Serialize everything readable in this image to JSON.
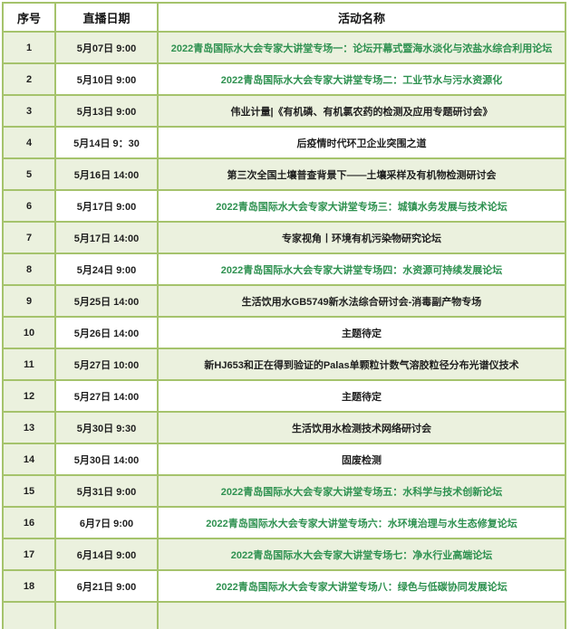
{
  "colors": {
    "border_green": "#a5c36c",
    "cell_green_bg": "#ebf1de",
    "link_green_text": "#2e9150",
    "plain_text": "#1f1f1f"
  },
  "table": {
    "columns": [
      "序号",
      "直播日期",
      "活动名称"
    ],
    "rows": [
      {
        "no": "1",
        "date": "5月07日 9:00",
        "title": "2022青岛国际水大会专家大讲堂专场一：论坛开幕式暨海水淡化与浓盐水综合利用论坛",
        "link": true
      },
      {
        "no": "2",
        "date": "5月10日 9:00",
        "title": "2022青岛国际水大会专家大讲堂专场二：工业节水与污水资源化",
        "link": true
      },
      {
        "no": "3",
        "date": "5月13日 9:00",
        "title": "伟业计量|《有机磷、有机氯农药的检测及应用专题研讨会》",
        "link": false
      },
      {
        "no": "4",
        "date": "5月14日 9：30",
        "title": "后疫情时代环卫企业突围之道",
        "link": false
      },
      {
        "no": "5",
        "date": "5月16日 14:00",
        "title": "第三次全国土壤普查背景下——土壤采样及有机物检测研讨会",
        "link": false
      },
      {
        "no": "6",
        "date": "5月17日 9:00",
        "title": "2022青岛国际水大会专家大讲堂专场三：城镇水务发展与技术论坛",
        "link": true
      },
      {
        "no": "7",
        "date": "5月17日 14:00",
        "title": "专家视角丨环境有机污染物研究论坛",
        "link": false
      },
      {
        "no": "8",
        "date": "5月24日 9:00",
        "title": "2022青岛国际水大会专家大讲堂专场四：水资源可持续发展论坛",
        "link": true
      },
      {
        "no": "9",
        "date": "5月25日 14:00",
        "title": "生活饮用水GB5749新水法综合研讨会-消毒副产物专场",
        "link": false
      },
      {
        "no": "10",
        "date": "5月26日 14:00",
        "title": "主题待定",
        "link": false
      },
      {
        "no": "11",
        "date": "5月27日 10:00",
        "title": "新HJ653和正在得到验证的Palas单颗粒计数气溶胶粒径分布光谱仪技术",
        "link": false
      },
      {
        "no": "12",
        "date": "5月27日 14:00",
        "title": "主题待定",
        "link": false
      },
      {
        "no": "13",
        "date": "5月30日 9:30",
        "title": "生活饮用水检测技术网络研讨会",
        "link": false
      },
      {
        "no": "14",
        "date": "5月30日 14:00",
        "title": "固废检测",
        "link": false
      },
      {
        "no": "15",
        "date": "5月31日 9:00",
        "title": "2022青岛国际水大会专家大讲堂专场五：水科学与技术创新论坛",
        "link": true
      },
      {
        "no": "16",
        "date": "6月7日 9:00",
        "title": "2022青岛国际水大会专家大讲堂专场六：水环境治理与水生态修复论坛",
        "link": true
      },
      {
        "no": "17",
        "date": "6月14日 9:00",
        "title": "2022青岛国际水大会专家大讲堂专场七：净水行业高端论坛",
        "link": true
      },
      {
        "no": "18",
        "date": "6月21日 9:00",
        "title": "2022青岛国际水大会专家大讲堂专场八：绿色与低碳协同发展论坛",
        "link": true
      }
    ]
  }
}
